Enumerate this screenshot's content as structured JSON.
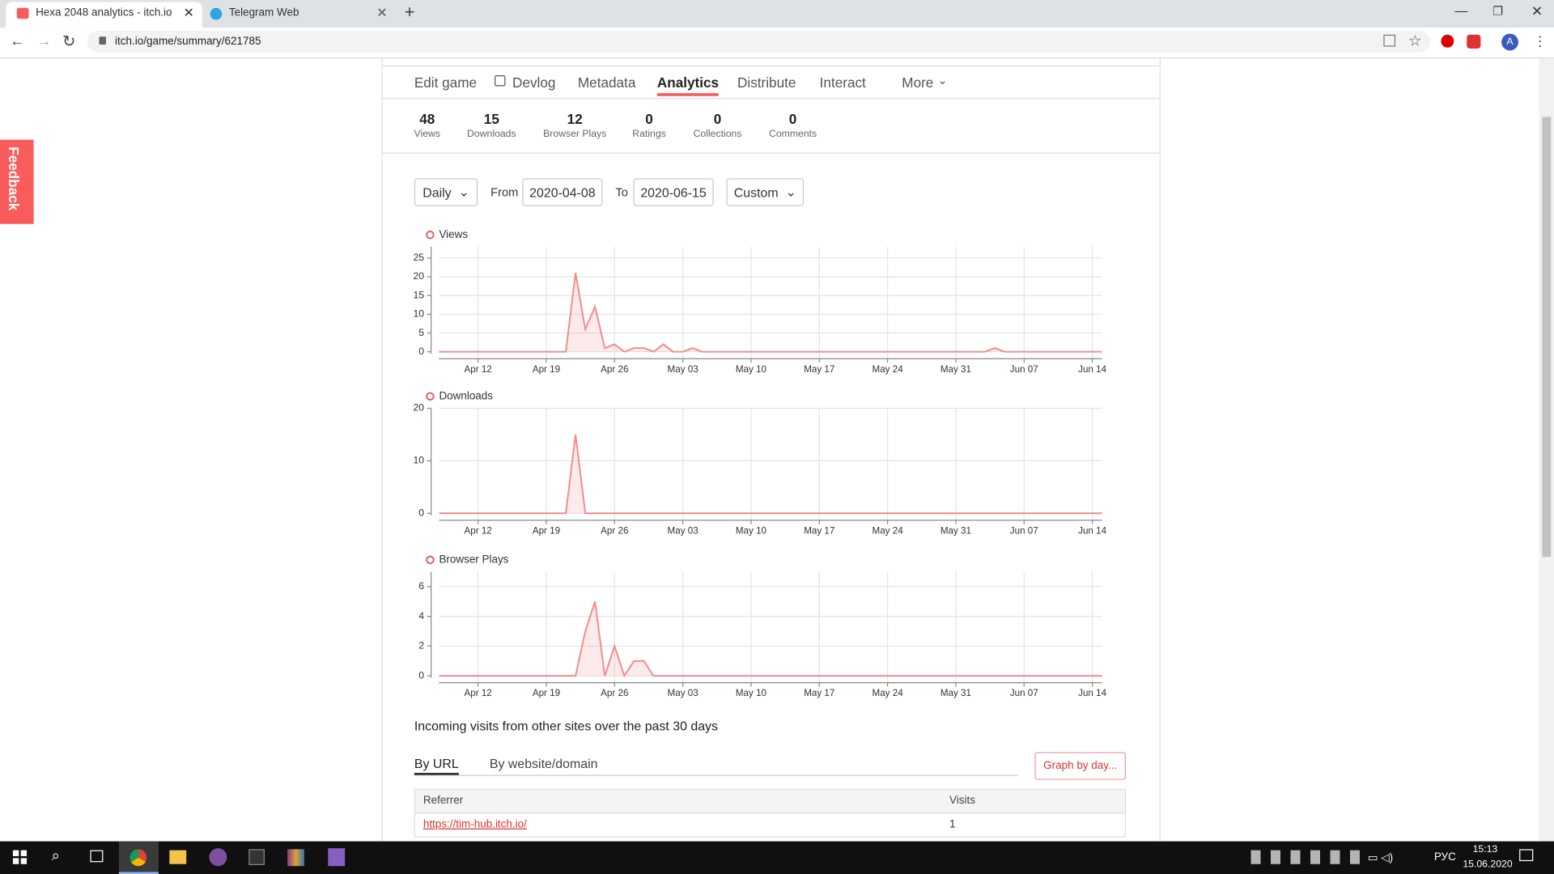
{
  "browser": {
    "tabs": [
      "Hexa 2048 analytics - itch.io",
      "Telegram Web"
    ],
    "url": "itch.io/game/summary/621785",
    "profile": "A"
  },
  "feedback": "Feedback",
  "nav": [
    "Edit game",
    "Devlog",
    "Metadata",
    "Analytics",
    "Distribute",
    "Interact",
    "More"
  ],
  "stats": [
    {
      "value": 48,
      "label": "Views"
    },
    {
      "value": 15,
      "label": "Downloads"
    },
    {
      "value": 12,
      "label": "Browser Plays"
    },
    {
      "value": 0,
      "label": "Ratings"
    },
    {
      "value": 0,
      "label": "Collections"
    },
    {
      "value": 0,
      "label": "Comments"
    }
  ],
  "filters": {
    "interval": "Daily",
    "from_label": "From",
    "from": "2020-04-08",
    "to_label": "To",
    "to": "2020-06-15",
    "range": "Custom"
  },
  "chart_data": [
    {
      "type": "line",
      "categories": [
        null,
        null,
        null,
        null,
        "Apr 12",
        null,
        null,
        null,
        null,
        null,
        null,
        "Apr 19",
        null,
        null,
        null,
        null,
        null,
        null,
        "Apr 26",
        null,
        null,
        null,
        null,
        null,
        null,
        "May 03",
        null,
        null,
        null,
        null,
        null,
        null,
        "May 10",
        null,
        null,
        null,
        null,
        null,
        null,
        "May 17",
        null,
        null,
        null,
        null,
        null,
        null,
        "May 24",
        null,
        null,
        null,
        null,
        null,
        null,
        "May 31",
        null,
        null,
        null,
        null,
        null,
        null,
        "Jun 07",
        null,
        null,
        null,
        null,
        null,
        null,
        "Jun 14",
        null
      ],
      "series": [
        {
          "name": "Views",
          "color": "#f28b8b",
          "values": [
            0,
            0,
            0,
            0,
            0,
            0,
            0,
            0,
            0,
            0,
            0,
            0,
            0,
            0,
            21,
            6,
            12,
            1,
            2,
            0,
            1,
            1,
            0,
            2,
            0,
            0,
            1,
            0,
            0,
            0,
            0,
            0,
            0,
            0,
            0,
            0,
            0,
            0,
            0,
            0,
            0,
            0,
            0,
            0,
            0,
            0,
            0,
            0,
            0,
            0,
            0,
            0,
            0,
            0,
            0,
            0,
            0,
            1,
            0,
            0,
            0,
            0,
            0,
            0,
            0,
            0,
            0,
            0,
            0
          ]
        }
      ],
      "ylim": [
        0,
        28
      ],
      "yticks": [
        0,
        5,
        10,
        15,
        20,
        25
      ],
      "grid": true
    },
    {
      "type": "line",
      "categories": [
        null,
        null,
        null,
        null,
        "Apr 12",
        null,
        null,
        null,
        null,
        null,
        null,
        "Apr 19",
        null,
        null,
        null,
        null,
        null,
        null,
        "Apr 26",
        null,
        null,
        null,
        null,
        null,
        null,
        "May 03",
        null,
        null,
        null,
        null,
        null,
        null,
        "May 10",
        null,
        null,
        null,
        null,
        null,
        null,
        "May 17",
        null,
        null,
        null,
        null,
        null,
        null,
        "May 24",
        null,
        null,
        null,
        null,
        null,
        null,
        "May 31",
        null,
        null,
        null,
        null,
        null,
        null,
        "Jun 07",
        null,
        null,
        null,
        null,
        null,
        null,
        "Jun 14",
        null
      ],
      "series": [
        {
          "name": "Downloads",
          "color": "#f28b8b",
          "values": [
            0,
            0,
            0,
            0,
            0,
            0,
            0,
            0,
            0,
            0,
            0,
            0,
            0,
            0,
            15,
            0,
            0,
            0,
            0,
            0,
            0,
            0,
            0,
            0,
            0,
            0,
            0,
            0,
            0,
            0,
            0,
            0,
            0,
            0,
            0,
            0,
            0,
            0,
            0,
            0,
            0,
            0,
            0,
            0,
            0,
            0,
            0,
            0,
            0,
            0,
            0,
            0,
            0,
            0,
            0,
            0,
            0,
            0,
            0,
            0,
            0,
            0,
            0,
            0,
            0,
            0,
            0,
            0,
            0
          ]
        }
      ],
      "ylim": [
        0,
        20
      ],
      "yticks": [
        0,
        10,
        20
      ],
      "grid": true
    },
    {
      "type": "line",
      "categories": [
        null,
        null,
        null,
        null,
        "Apr 12",
        null,
        null,
        null,
        null,
        null,
        null,
        "Apr 19",
        null,
        null,
        null,
        null,
        null,
        null,
        "Apr 26",
        null,
        null,
        null,
        null,
        null,
        null,
        "May 03",
        null,
        null,
        null,
        null,
        null,
        null,
        "May 10",
        null,
        null,
        null,
        null,
        null,
        null,
        "May 17",
        null,
        null,
        null,
        null,
        null,
        null,
        "May 24",
        null,
        null,
        null,
        null,
        null,
        null,
        "May 31",
        null,
        null,
        null,
        null,
        null,
        null,
        "Jun 07",
        null,
        null,
        null,
        null,
        null,
        null,
        "Jun 14",
        null
      ],
      "series": [
        {
          "name": "Browser Plays",
          "color": "#f28b8b",
          "values": [
            0,
            0,
            0,
            0,
            0,
            0,
            0,
            0,
            0,
            0,
            0,
            0,
            0,
            0,
            0,
            3,
            5,
            0,
            2,
            0,
            1,
            1,
            0,
            0,
            0,
            0,
            0,
            0,
            0,
            0,
            0,
            0,
            0,
            0,
            0,
            0,
            0,
            0,
            0,
            0,
            0,
            0,
            0,
            0,
            0,
            0,
            0,
            0,
            0,
            0,
            0,
            0,
            0,
            0,
            0,
            0,
            0,
            0,
            0,
            0,
            0,
            0,
            0,
            0,
            0,
            0,
            0,
            0,
            0
          ]
        }
      ],
      "ylim": [
        0,
        7
      ],
      "yticks": [
        0,
        2,
        4,
        6
      ],
      "grid": true
    }
  ],
  "referrers": {
    "heading": "Incoming visits from other sites over the past 30 days",
    "tabs": [
      "By URL",
      "By website/domain"
    ],
    "button": "Graph by day...",
    "columns": [
      "Referrer",
      "Visits"
    ],
    "rows": [
      [
        "https://tim-hub.itch.io/",
        1
      ]
    ]
  },
  "taskbar": {
    "language": "РУС",
    "time": "15:13",
    "date": "15.06.2020"
  }
}
